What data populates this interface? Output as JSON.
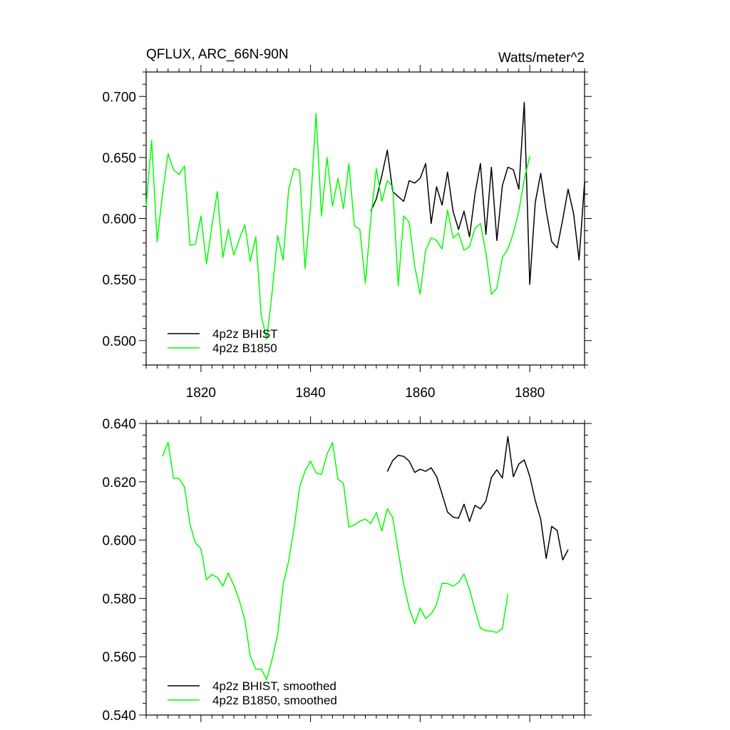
{
  "chart_data": [
    {
      "type": "line",
      "title": "QFLUX, ARC_66N-90N",
      "units": "Watts/meter^2",
      "x_tick_labels": [
        "1820",
        "1840",
        "1860",
        "1880"
      ],
      "y_tick_labels": [
        "0.500",
        "0.550",
        "0.600",
        "0.650",
        "0.700"
      ],
      "x_ticks": [
        1820,
        1840,
        1860,
        1880
      ],
      "y_ticks": [
        0.5,
        0.55,
        0.6,
        0.65,
        0.7
      ],
      "xlim": [
        1810,
        1890
      ],
      "ylim": [
        0.48,
        0.72
      ],
      "legend_position": "bottom-left",
      "series": [
        {
          "name": "4p2z BHIST",
          "color": "#000000",
          "x_start": 1851,
          "values": [
            0.606,
            0.616,
            0.635,
            0.656,
            0.622,
            0.618,
            0.614,
            0.631,
            0.629,
            0.633,
            0.645,
            0.596,
            0.626,
            0.611,
            0.638,
            0.606,
            0.591,
            0.606,
            0.585,
            0.62,
            0.645,
            0.587,
            0.642,
            0.582,
            0.627,
            0.642,
            0.64,
            0.624,
            0.695,
            0.546,
            0.613,
            0.637,
            0.606,
            0.581,
            0.576,
            0.599,
            0.624,
            0.604,
            0.566,
            0.63
          ]
        },
        {
          "name": "4p2z B1850",
          "color": "#00ff00",
          "x_start": 1810,
          "values": [
            0.61,
            0.664,
            0.581,
            0.621,
            0.653,
            0.64,
            0.636,
            0.643,
            0.578,
            0.579,
            0.602,
            0.563,
            0.594,
            0.622,
            0.568,
            0.591,
            0.57,
            0.583,
            0.595,
            0.565,
            0.585,
            0.521,
            0.501,
            0.54,
            0.586,
            0.566,
            0.624,
            0.641,
            0.639,
            0.559,
            0.61,
            0.686,
            0.602,
            0.65,
            0.61,
            0.633,
            0.608,
            0.645,
            0.594,
            0.591,
            0.547,
            0.6,
            0.641,
            0.614,
            0.631,
            0.626,
            0.545,
            0.602,
            0.597,
            0.561,
            0.538,
            0.574,
            0.584,
            0.582,
            0.575,
            0.607,
            0.584,
            0.588,
            0.574,
            0.577,
            0.592,
            0.596,
            0.572,
            0.538,
            0.543,
            0.568,
            0.575,
            0.588,
            0.606,
            0.632,
            0.651
          ]
        }
      ]
    },
    {
      "type": "line",
      "x_tick_labels": [],
      "y_tick_labels": [
        "0.540",
        "0.560",
        "0.580",
        "0.600",
        "0.620",
        "0.640"
      ],
      "x_ticks": [
        1820,
        1840,
        1860,
        1880
      ],
      "y_ticks": [
        0.54,
        0.56,
        0.58,
        0.6,
        0.62,
        0.64
      ],
      "xlim": [
        1810,
        1890
      ],
      "ylim": [
        0.54,
        0.64
      ],
      "legend_position": "bottom-left",
      "series": [
        {
          "name": "4p2z BHIST, smoothed",
          "color": "#000000",
          "x_start": 1854,
          "values": [
            0.6235,
            0.6273,
            0.6291,
            0.6287,
            0.6271,
            0.6232,
            0.6243,
            0.6236,
            0.6248,
            0.6218,
            0.6158,
            0.6096,
            0.6079,
            0.6075,
            0.6123,
            0.6064,
            0.6119,
            0.6107,
            0.6134,
            0.6215,
            0.6241,
            0.6213,
            0.6355,
            0.6217,
            0.6261,
            0.6275,
            0.6219,
            0.6136,
            0.6071,
            0.5937,
            0.6047,
            0.6033,
            0.5932,
            0.5967
          ]
        },
        {
          "name": "4p2z B1850, smoothed",
          "color": "#00ff00",
          "x_start": 1813,
          "values": [
            0.6288,
            0.6335,
            0.6212,
            0.6211,
            0.6183,
            0.6054,
            0.599,
            0.5971,
            0.5864,
            0.5882,
            0.5872,
            0.5842,
            0.5887,
            0.5845,
            0.5793,
            0.5727,
            0.5602,
            0.5557,
            0.5558,
            0.5521,
            0.5592,
            0.5677,
            0.5847,
            0.5928,
            0.6043,
            0.6182,
            0.6237,
            0.6271,
            0.6231,
            0.6225,
            0.6295,
            0.6334,
            0.6209,
            0.6195,
            0.6044,
            0.6052,
            0.6065,
            0.6072,
            0.6057,
            0.6094,
            0.6031,
            0.6107,
            0.6078,
            0.5961,
            0.5849,
            0.5767,
            0.5713,
            0.5767,
            0.5731,
            0.5747,
            0.5779,
            0.5852,
            0.5851,
            0.5842,
            0.5854,
            0.5884,
            0.5831,
            0.5761,
            0.5698,
            0.5689,
            0.5688,
            0.5683,
            0.5697,
            0.5815
          ]
        }
      ]
    }
  ]
}
